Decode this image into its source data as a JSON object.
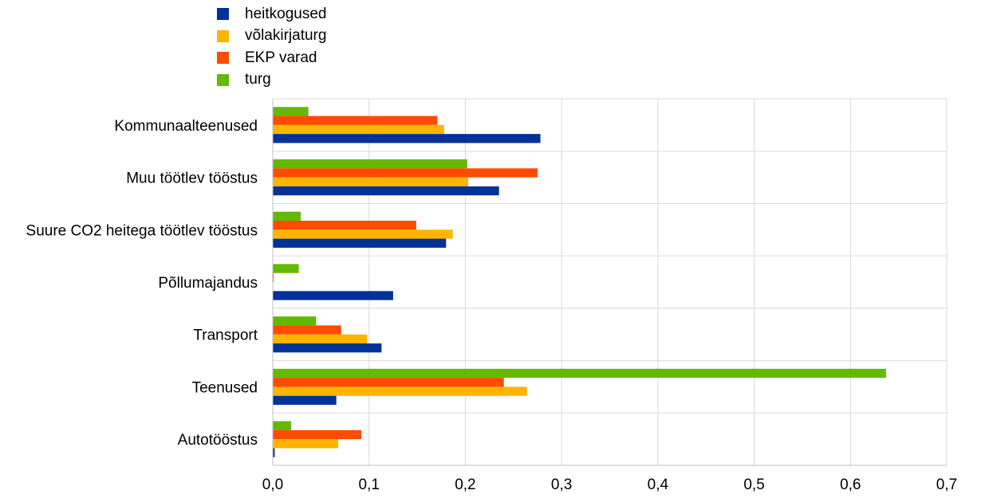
{
  "chart_data": {
    "type": "bar",
    "orientation": "horizontal",
    "title": "",
    "xlabel": "",
    "ylabel": "",
    "categories": [
      "Kommunaalteenused",
      "Muu töötlev tööstus",
      "Suure CO2 heitega töötlev tööstus",
      "Põllumajandus",
      "Transport",
      "Teenused",
      "Autotööstus"
    ],
    "series": [
      {
        "name": "heitkogused",
        "color": "#003299",
        "values": [
          0.278,
          0.235,
          0.18,
          0.125,
          0.113,
          0.066,
          0.002
        ]
      },
      {
        "name": "võlakirjaturg",
        "color": "#FFB400",
        "values": [
          0.178,
          0.203,
          0.187,
          0.0,
          0.098,
          0.264,
          0.068
        ]
      },
      {
        "name": "EKP varad",
        "color": "#FF4B00",
        "values": [
          0.171,
          0.275,
          0.149,
          0.001,
          0.071,
          0.24,
          0.092
        ]
      },
      {
        "name": "turg",
        "color": "#65B800",
        "values": [
          0.037,
          0.202,
          0.029,
          0.027,
          0.045,
          0.637,
          0.019
        ]
      }
    ],
    "xlim": [
      0,
      0.7
    ],
    "xticks": [
      "0,0",
      "0,1",
      "0,2",
      "0,3",
      "0,4",
      "0,5",
      "0,6",
      "0,7"
    ],
    "grid": true,
    "legend_position": "top-left"
  }
}
